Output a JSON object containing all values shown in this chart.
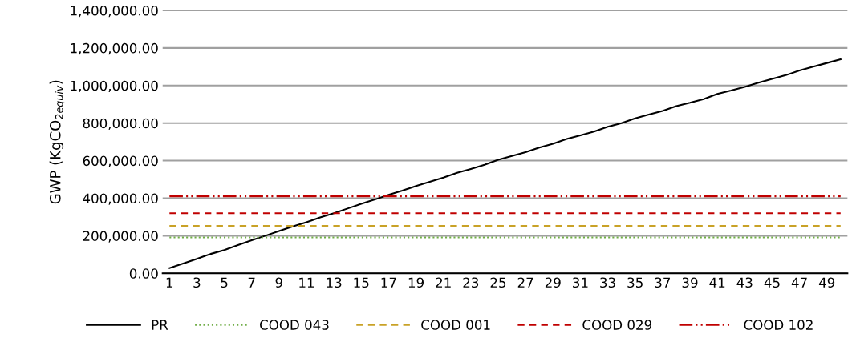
{
  "chart_data": {
    "type": "line",
    "ylabel": "GWP (KgCO$_{2equiv}$)",
    "categories": [
      "1",
      null,
      "3",
      null,
      "5",
      null,
      "7",
      null,
      "9",
      null,
      "11",
      null,
      "13",
      null,
      "15",
      null,
      "17",
      null,
      "19",
      null,
      "21",
      null,
      "23",
      null,
      "25",
      null,
      "27",
      null,
      "29",
      null,
      "31",
      null,
      "33",
      null,
      "35",
      null,
      "37",
      null,
      "39",
      null,
      "41",
      null,
      "43",
      null,
      "45",
      null,
      "47",
      null,
      "49",
      null
    ],
    "series": [
      {
        "name": "PR",
        "color": "#000000",
        "line_style": "solid",
        "values": [
          28000,
          52000,
          77000,
          103000,
          124000,
          150000,
          176000,
          200000,
          225000,
          250000,
          272000,
          298000,
          320000,
          345000,
          370000,
          393000,
          418000,
          440000,
          465000,
          487000,
          510000,
          535000,
          556000,
          578000,
          605000,
          625000,
          645000,
          670000,
          690000,
          715000,
          735000,
          755000,
          780000,
          800000,
          825000,
          845000,
          865000,
          890000,
          908000,
          928000,
          955000,
          973000,
          993000,
          1015000,
          1035000,
          1055000,
          1080000,
          1100000,
          1120000,
          1140000
        ]
      },
      {
        "name": "COOD 043",
        "color": "#70ad47",
        "line_style": "dotted",
        "values": [
          191000,
          191000,
          191000,
          191000,
          191000,
          191000,
          191000,
          191000,
          191000,
          191000,
          191000,
          191000,
          191000,
          191000,
          191000,
          191000,
          191000,
          191000,
          191000,
          191000,
          191000,
          191000,
          191000,
          191000,
          191000,
          191000,
          191000,
          191000,
          191000,
          191000,
          191000,
          191000,
          191000,
          191000,
          191000,
          191000,
          191000,
          191000,
          191000,
          191000,
          191000,
          191000,
          191000,
          191000,
          191000,
          191000,
          191000,
          191000,
          191000,
          191000
        ]
      },
      {
        "name": "COOD 001",
        "color": "#c9a227",
        "line_style": "dashed",
        "values": [
          253000,
          253000,
          253000,
          253000,
          253000,
          253000,
          253000,
          253000,
          253000,
          253000,
          253000,
          253000,
          253000,
          253000,
          253000,
          253000,
          253000,
          253000,
          253000,
          253000,
          253000,
          253000,
          253000,
          253000,
          253000,
          253000,
          253000,
          253000,
          253000,
          253000,
          253000,
          253000,
          253000,
          253000,
          253000,
          253000,
          253000,
          253000,
          253000,
          253000,
          253000,
          253000,
          253000,
          253000,
          253000,
          253000,
          253000,
          253000,
          253000,
          253000
        ]
      },
      {
        "name": "COOD 029",
        "color": "#c00000",
        "line_style": "dashed",
        "values": [
          320000,
          320000,
          320000,
          320000,
          320000,
          320000,
          320000,
          320000,
          320000,
          320000,
          320000,
          320000,
          320000,
          320000,
          320000,
          320000,
          320000,
          320000,
          320000,
          320000,
          320000,
          320000,
          320000,
          320000,
          320000,
          320000,
          320000,
          320000,
          320000,
          320000,
          320000,
          320000,
          320000,
          320000,
          320000,
          320000,
          320000,
          320000,
          320000,
          320000,
          320000,
          320000,
          320000,
          320000,
          320000,
          320000,
          320000,
          320000,
          320000,
          320000
        ]
      },
      {
        "name": "COOD 102",
        "color": "#c00000",
        "line_style": "dashdot",
        "values": [
          410000,
          410000,
          410000,
          410000,
          410000,
          410000,
          410000,
          410000,
          410000,
          410000,
          410000,
          410000,
          410000,
          410000,
          410000,
          410000,
          410000,
          410000,
          410000,
          410000,
          410000,
          410000,
          410000,
          410000,
          410000,
          410000,
          410000,
          410000,
          410000,
          410000,
          410000,
          410000,
          410000,
          410000,
          410000,
          410000,
          410000,
          410000,
          410000,
          410000,
          410000,
          410000,
          410000,
          410000,
          410000,
          410000,
          410000,
          410000,
          410000,
          410000
        ]
      }
    ],
    "ylim": [
      0,
      1400000
    ],
    "yticks": [
      {
        "value": 0,
        "label": "0.00"
      },
      {
        "value": 200000,
        "label": "200,000.00"
      },
      {
        "value": 400000,
        "label": "400,000.00"
      },
      {
        "value": 600000,
        "label": "600,000.00"
      },
      {
        "value": 800000,
        "label": "800,000.00"
      },
      {
        "value": 1000000,
        "label": "1,000,000.00"
      },
      {
        "value": 1200000,
        "label": "1,200,000.00"
      },
      {
        "value": 1400000,
        "label": "1,400,000.00"
      }
    ],
    "grid": "y",
    "legend": "bottom",
    "marker": "none"
  }
}
